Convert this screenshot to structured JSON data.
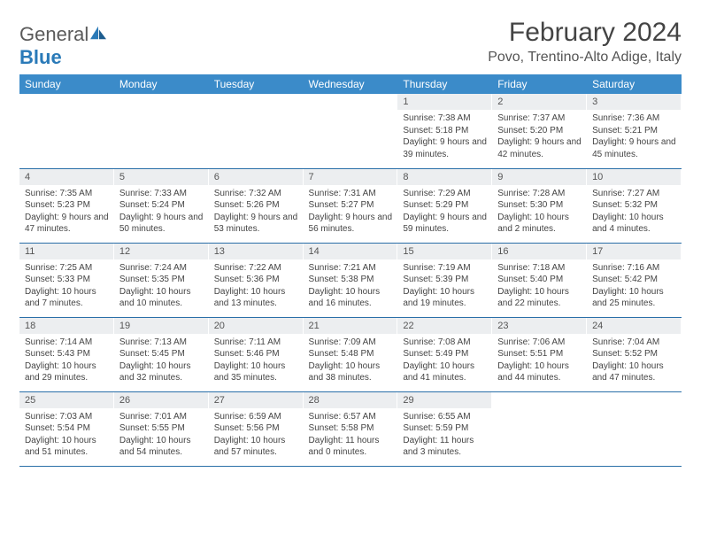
{
  "logo": {
    "brand1": "General",
    "brand2": "Blue"
  },
  "title": "February 2024",
  "location": "Povo, Trentino-Alto Adige, Italy",
  "colors": {
    "header_bg": "#3b8bc9",
    "header_text": "#ffffff",
    "rule": "#2a6fa8",
    "daynum_bg": "#eceef0",
    "body_text": "#444444"
  },
  "dayNames": [
    "Sunday",
    "Monday",
    "Tuesday",
    "Wednesday",
    "Thursday",
    "Friday",
    "Saturday"
  ],
  "weeks": [
    [
      {
        "num": "",
        "lines": []
      },
      {
        "num": "",
        "lines": []
      },
      {
        "num": "",
        "lines": []
      },
      {
        "num": "",
        "lines": []
      },
      {
        "num": "1",
        "lines": [
          "Sunrise: 7:38 AM",
          "Sunset: 5:18 PM",
          "Daylight: 9 hours and 39 minutes."
        ]
      },
      {
        "num": "2",
        "lines": [
          "Sunrise: 7:37 AM",
          "Sunset: 5:20 PM",
          "Daylight: 9 hours and 42 minutes."
        ]
      },
      {
        "num": "3",
        "lines": [
          "Sunrise: 7:36 AM",
          "Sunset: 5:21 PM",
          "Daylight: 9 hours and 45 minutes."
        ]
      }
    ],
    [
      {
        "num": "4",
        "lines": [
          "Sunrise: 7:35 AM",
          "Sunset: 5:23 PM",
          "Daylight: 9 hours and 47 minutes."
        ]
      },
      {
        "num": "5",
        "lines": [
          "Sunrise: 7:33 AM",
          "Sunset: 5:24 PM",
          "Daylight: 9 hours and 50 minutes."
        ]
      },
      {
        "num": "6",
        "lines": [
          "Sunrise: 7:32 AM",
          "Sunset: 5:26 PM",
          "Daylight: 9 hours and 53 minutes."
        ]
      },
      {
        "num": "7",
        "lines": [
          "Sunrise: 7:31 AM",
          "Sunset: 5:27 PM",
          "Daylight: 9 hours and 56 minutes."
        ]
      },
      {
        "num": "8",
        "lines": [
          "Sunrise: 7:29 AM",
          "Sunset: 5:29 PM",
          "Daylight: 9 hours and 59 minutes."
        ]
      },
      {
        "num": "9",
        "lines": [
          "Sunrise: 7:28 AM",
          "Sunset: 5:30 PM",
          "Daylight: 10 hours and 2 minutes."
        ]
      },
      {
        "num": "10",
        "lines": [
          "Sunrise: 7:27 AM",
          "Sunset: 5:32 PM",
          "Daylight: 10 hours and 4 minutes."
        ]
      }
    ],
    [
      {
        "num": "11",
        "lines": [
          "Sunrise: 7:25 AM",
          "Sunset: 5:33 PM",
          "Daylight: 10 hours and 7 minutes."
        ]
      },
      {
        "num": "12",
        "lines": [
          "Sunrise: 7:24 AM",
          "Sunset: 5:35 PM",
          "Daylight: 10 hours and 10 minutes."
        ]
      },
      {
        "num": "13",
        "lines": [
          "Sunrise: 7:22 AM",
          "Sunset: 5:36 PM",
          "Daylight: 10 hours and 13 minutes."
        ]
      },
      {
        "num": "14",
        "lines": [
          "Sunrise: 7:21 AM",
          "Sunset: 5:38 PM",
          "Daylight: 10 hours and 16 minutes."
        ]
      },
      {
        "num": "15",
        "lines": [
          "Sunrise: 7:19 AM",
          "Sunset: 5:39 PM",
          "Daylight: 10 hours and 19 minutes."
        ]
      },
      {
        "num": "16",
        "lines": [
          "Sunrise: 7:18 AM",
          "Sunset: 5:40 PM",
          "Daylight: 10 hours and 22 minutes."
        ]
      },
      {
        "num": "17",
        "lines": [
          "Sunrise: 7:16 AM",
          "Sunset: 5:42 PM",
          "Daylight: 10 hours and 25 minutes."
        ]
      }
    ],
    [
      {
        "num": "18",
        "lines": [
          "Sunrise: 7:14 AM",
          "Sunset: 5:43 PM",
          "Daylight: 10 hours and 29 minutes."
        ]
      },
      {
        "num": "19",
        "lines": [
          "Sunrise: 7:13 AM",
          "Sunset: 5:45 PM",
          "Daylight: 10 hours and 32 minutes."
        ]
      },
      {
        "num": "20",
        "lines": [
          "Sunrise: 7:11 AM",
          "Sunset: 5:46 PM",
          "Daylight: 10 hours and 35 minutes."
        ]
      },
      {
        "num": "21",
        "lines": [
          "Sunrise: 7:09 AM",
          "Sunset: 5:48 PM",
          "Daylight: 10 hours and 38 minutes."
        ]
      },
      {
        "num": "22",
        "lines": [
          "Sunrise: 7:08 AM",
          "Sunset: 5:49 PM",
          "Daylight: 10 hours and 41 minutes."
        ]
      },
      {
        "num": "23",
        "lines": [
          "Sunrise: 7:06 AM",
          "Sunset: 5:51 PM",
          "Daylight: 10 hours and 44 minutes."
        ]
      },
      {
        "num": "24",
        "lines": [
          "Sunrise: 7:04 AM",
          "Sunset: 5:52 PM",
          "Daylight: 10 hours and 47 minutes."
        ]
      }
    ],
    [
      {
        "num": "25",
        "lines": [
          "Sunrise: 7:03 AM",
          "Sunset: 5:54 PM",
          "Daylight: 10 hours and 51 minutes."
        ]
      },
      {
        "num": "26",
        "lines": [
          "Sunrise: 7:01 AM",
          "Sunset: 5:55 PM",
          "Daylight: 10 hours and 54 minutes."
        ]
      },
      {
        "num": "27",
        "lines": [
          "Sunrise: 6:59 AM",
          "Sunset: 5:56 PM",
          "Daylight: 10 hours and 57 minutes."
        ]
      },
      {
        "num": "28",
        "lines": [
          "Sunrise: 6:57 AM",
          "Sunset: 5:58 PM",
          "Daylight: 11 hours and 0 minutes."
        ]
      },
      {
        "num": "29",
        "lines": [
          "Sunrise: 6:55 AM",
          "Sunset: 5:59 PM",
          "Daylight: 11 hours and 3 minutes."
        ]
      },
      {
        "num": "",
        "lines": []
      },
      {
        "num": "",
        "lines": []
      }
    ]
  ]
}
